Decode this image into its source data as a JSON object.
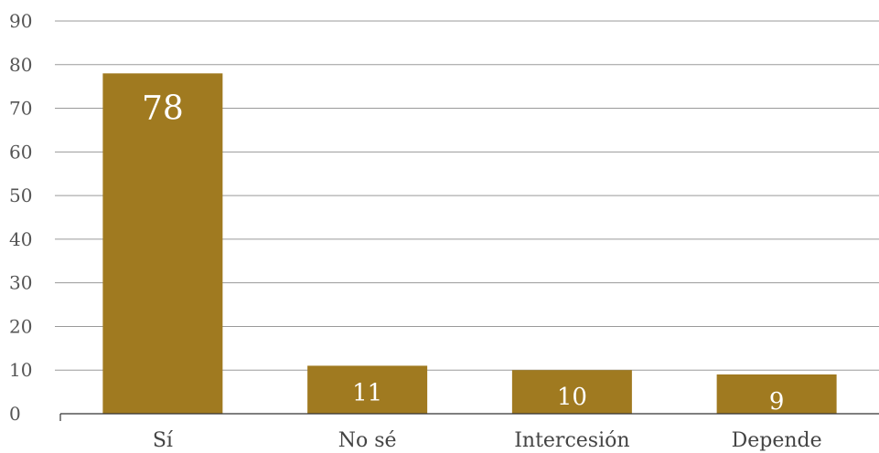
{
  "chart_data": {
    "type": "bar",
    "categories": [
      "Sí",
      "No sé",
      "Intercesión",
      "Depende"
    ],
    "values": [
      78,
      11,
      10,
      9
    ],
    "data_labels": [
      "78",
      "11",
      "10",
      "9"
    ],
    "y_ticks": [
      "0",
      "10",
      "20",
      "30",
      "40",
      "50",
      "60",
      "70",
      "80",
      "90"
    ],
    "ylim": [
      0,
      90
    ],
    "grid": true,
    "bar_color": "#A07A20",
    "title": "",
    "xlabel": "",
    "ylabel": ""
  }
}
